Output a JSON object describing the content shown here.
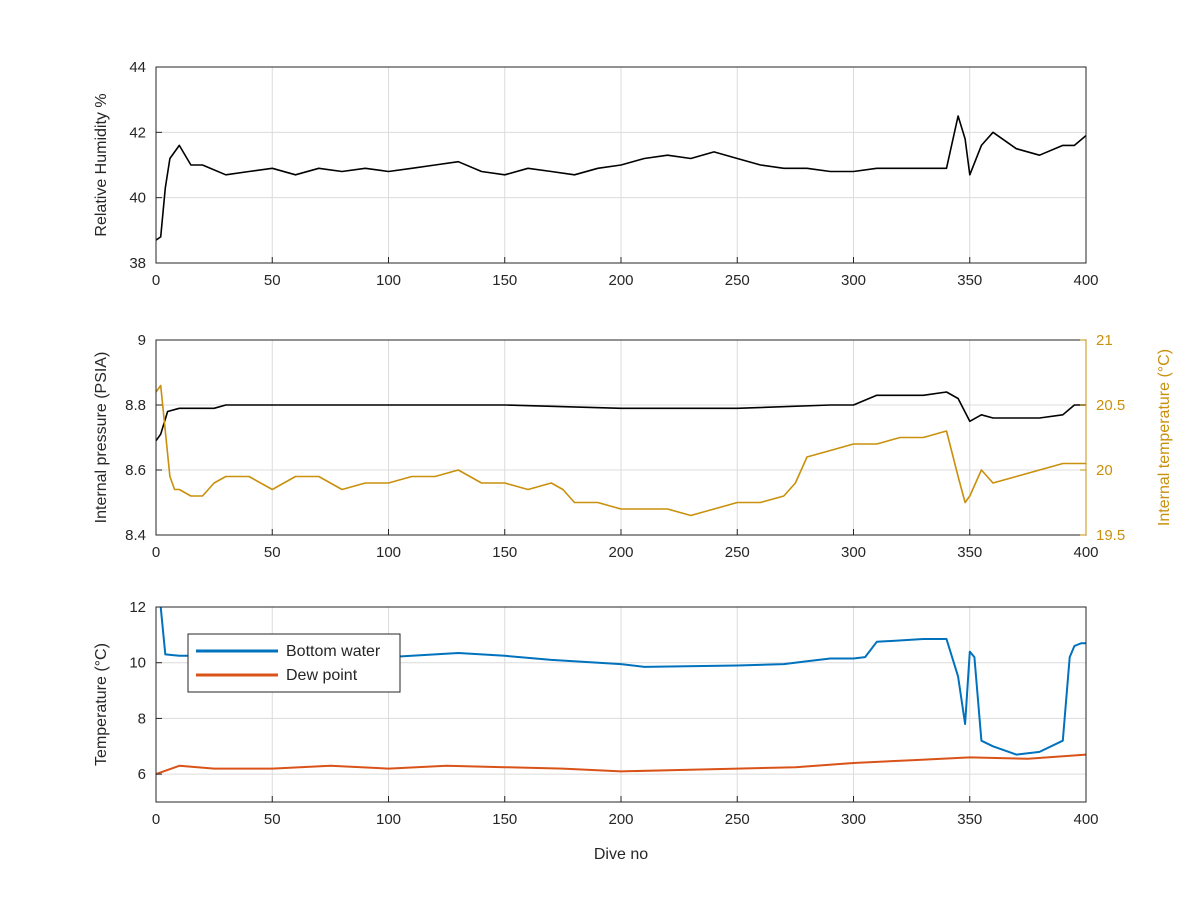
{
  "chart_data": [
    {
      "type": "line",
      "ylabel": "Relative Humidity %",
      "xlim": [
        0,
        400
      ],
      "ylim": [
        38,
        44
      ],
      "xticks": [
        "0",
        "50",
        "100",
        "150",
        "200",
        "250",
        "300",
        "350",
        "400"
      ],
      "yticks": [
        "38",
        "40",
        "42",
        "44"
      ],
      "grid": true,
      "series": [
        {
          "color": "#000000",
          "x": [
            0,
            2,
            4,
            6,
            10,
            15,
            20,
            30,
            40,
            50,
            60,
            70,
            80,
            90,
            100,
            110,
            120,
            130,
            140,
            150,
            160,
            170,
            180,
            190,
            200,
            210,
            220,
            230,
            240,
            250,
            260,
            270,
            280,
            290,
            300,
            310,
            320,
            330,
            340,
            345,
            348,
            350,
            355,
            360,
            370,
            380,
            390,
            395,
            400
          ],
          "y": [
            38.7,
            38.8,
            40.3,
            41.2,
            41.6,
            41.0,
            41.0,
            40.7,
            40.8,
            40.9,
            40.7,
            40.9,
            40.8,
            40.9,
            40.8,
            40.9,
            41.0,
            41.1,
            40.8,
            40.7,
            40.9,
            40.8,
            40.7,
            40.9,
            41.0,
            41.2,
            41.3,
            41.2,
            41.4,
            41.2,
            41.0,
            40.9,
            40.9,
            40.8,
            40.8,
            40.9,
            40.9,
            40.9,
            40.9,
            42.5,
            41.8,
            40.7,
            41.6,
            42.0,
            41.5,
            41.3,
            41.6,
            41.6,
            41.9
          ]
        }
      ]
    },
    {
      "type": "line",
      "ylabel": "Internal pressure (PSIA)",
      "y2label": "Internal temperature (°C)",
      "xlim": [
        0,
        400
      ],
      "ylim": [
        8.4,
        9.0
      ],
      "y2lim": [
        19.5,
        21.0
      ],
      "xticks": [
        "0",
        "50",
        "100",
        "150",
        "200",
        "250",
        "300",
        "350",
        "400"
      ],
      "yticks": [
        "8.4",
        "8.6",
        "8.8",
        "9"
      ],
      "y2ticks": [
        "19.5",
        "20",
        "20.5",
        "21"
      ],
      "grid": true,
      "series": [
        {
          "axis": "left",
          "color": "#000000",
          "x": [
            0,
            2,
            5,
            10,
            15,
            20,
            25,
            30,
            50,
            100,
            150,
            200,
            250,
            290,
            300,
            310,
            320,
            330,
            340,
            345,
            350,
            355,
            360,
            380,
            390,
            395,
            400
          ],
          "y": [
            8.69,
            8.71,
            8.78,
            8.79,
            8.79,
            8.79,
            8.79,
            8.8,
            8.8,
            8.8,
            8.8,
            8.79,
            8.79,
            8.8,
            8.8,
            8.83,
            8.83,
            8.83,
            8.84,
            8.82,
            8.75,
            8.77,
            8.76,
            8.76,
            8.77,
            8.8,
            8.8
          ]
        },
        {
          "axis": "right",
          "color": "#c9900c",
          "x": [
            0,
            2,
            4,
            6,
            8,
            10,
            15,
            20,
            25,
            30,
            40,
            50,
            60,
            70,
            80,
            90,
            100,
            110,
            120,
            130,
            140,
            150,
            160,
            170,
            175,
            180,
            190,
            200,
            210,
            220,
            230,
            240,
            250,
            260,
            270,
            275,
            280,
            290,
            300,
            310,
            320,
            330,
            340,
            345,
            348,
            350,
            355,
            360,
            370,
            380,
            390,
            400
          ],
          "y": [
            20.6,
            20.65,
            20.3,
            19.95,
            19.85,
            19.85,
            19.8,
            19.8,
            19.9,
            19.95,
            19.95,
            19.85,
            19.95,
            19.95,
            19.85,
            19.9,
            19.9,
            19.95,
            19.95,
            20.0,
            19.9,
            19.9,
            19.85,
            19.9,
            19.85,
            19.75,
            19.75,
            19.7,
            19.7,
            19.7,
            19.65,
            19.7,
            19.75,
            19.75,
            19.8,
            19.9,
            20.1,
            20.15,
            20.2,
            20.2,
            20.25,
            20.25,
            20.3,
            19.95,
            19.75,
            19.8,
            20.0,
            19.9,
            19.95,
            20.0,
            20.05,
            20.05
          ]
        }
      ]
    },
    {
      "type": "line",
      "xlabel": "Dive no",
      "ylabel": "Temperature (°C)",
      "xlim": [
        0,
        400
      ],
      "ylim": [
        5,
        12
      ],
      "xticks": [
        "0",
        "50",
        "100",
        "150",
        "200",
        "250",
        "300",
        "350",
        "400"
      ],
      "yticks": [
        "6",
        "8",
        "10",
        "12"
      ],
      "grid": true,
      "legend": "top-left",
      "series": [
        {
          "name": "Bottom water",
          "color": "#0072bd",
          "x": [
            0,
            2,
            4,
            10,
            20,
            50,
            100,
            120,
            130,
            150,
            170,
            200,
            210,
            250,
            270,
            280,
            290,
            300,
            305,
            310,
            330,
            340,
            345,
            348,
            350,
            352,
            355,
            360,
            370,
            380,
            390,
            393,
            395,
            398,
            400
          ],
          "y": [
            13.5,
            12.0,
            10.3,
            10.25,
            10.25,
            10.25,
            10.2,
            10.3,
            10.35,
            10.25,
            10.1,
            9.95,
            9.85,
            9.9,
            9.95,
            10.05,
            10.15,
            10.15,
            10.2,
            10.75,
            10.85,
            10.85,
            9.5,
            7.8,
            10.4,
            10.2,
            7.2,
            7.0,
            6.7,
            6.8,
            7.2,
            10.2,
            10.6,
            10.7,
            10.7
          ]
        },
        {
          "name": "Dew point",
          "color": "#d95319",
          "x": [
            0,
            10,
            25,
            50,
            75,
            100,
            125,
            150,
            175,
            200,
            225,
            250,
            275,
            300,
            325,
            350,
            375,
            400
          ],
          "y": [
            6.0,
            6.3,
            6.2,
            6.2,
            6.3,
            6.2,
            6.3,
            6.25,
            6.2,
            6.1,
            6.15,
            6.2,
            6.25,
            6.4,
            6.5,
            6.6,
            6.55,
            6.7
          ]
        }
      ]
    }
  ]
}
